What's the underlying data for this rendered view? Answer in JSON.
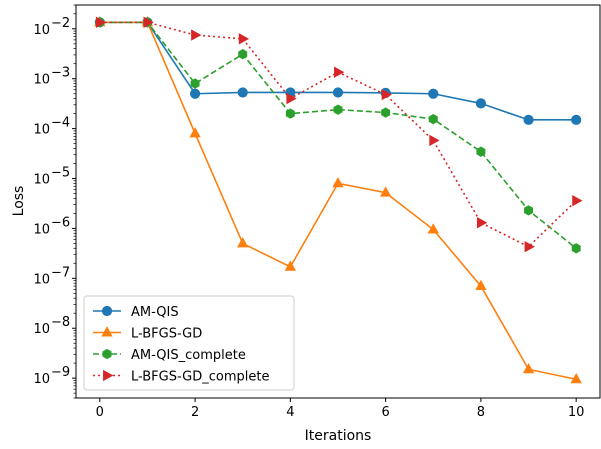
{
  "chart_data": {
    "type": "line",
    "title": "",
    "xlabel": "Iterations",
    "ylabel": "Loss",
    "x": [
      0,
      1,
      2,
      3,
      4,
      5,
      6,
      7,
      8,
      9,
      10
    ],
    "xlim": [
      -0.5,
      10.5
    ],
    "xticks": [
      0,
      2,
      4,
      6,
      8,
      10
    ],
    "yscale": "log",
    "ylim": [
      4e-10,
      0.03
    ],
    "yticks": [
      {
        "value": 0.01,
        "exp": "-2"
      },
      {
        "value": 0.001,
        "exp": "-3"
      },
      {
        "value": 0.0001,
        "exp": "-4"
      },
      {
        "value": 1e-05,
        "exp": "-5"
      },
      {
        "value": 1e-06,
        "exp": "-6"
      },
      {
        "value": 1e-07,
        "exp": "-7"
      },
      {
        "value": 1e-08,
        "exp": "-8"
      },
      {
        "value": 1e-09,
        "exp": "-9"
      }
    ],
    "ytick_base": "10",
    "grid": false,
    "legend_position": "lower-left",
    "series": [
      {
        "name": "AM-QIS",
        "color": "#1f77b4",
        "linestyle": "solid",
        "marker": "circle",
        "values": [
          0.0135,
          0.0135,
          0.0005,
          0.00053,
          0.00053,
          0.00053,
          0.00052,
          0.0005,
          0.00032,
          0.00015,
          0.00015
        ]
      },
      {
        "name": "L-BFGS-GD",
        "color": "#ff7f0e",
        "linestyle": "solid",
        "marker": "triangle-up",
        "values": [
          0.0135,
          0.0135,
          8e-05,
          5e-07,
          1.7e-07,
          8e-06,
          5.2e-06,
          9.5e-07,
          7e-08,
          1.5e-09,
          9.5e-10
        ]
      },
      {
        "name": "AM-QIS_complete",
        "color": "#2ca02c",
        "linestyle": "dashed",
        "marker": "hexagon",
        "values": [
          0.0135,
          0.0135,
          0.0008,
          0.0031,
          0.0002,
          0.00024,
          0.00021,
          0.000155,
          3.45e-05,
          2.3e-06,
          4e-07
        ]
      },
      {
        "name": "L-BFGS-GD_complete",
        "color": "#d62728",
        "linestyle": "dotted",
        "marker": "triangle-right",
        "values": [
          0.0135,
          0.0135,
          0.0075,
          0.0063,
          0.0004,
          0.00135,
          0.00048,
          5.8e-05,
          1.3e-06,
          4.3e-07,
          3.6e-06
        ]
      }
    ]
  }
}
